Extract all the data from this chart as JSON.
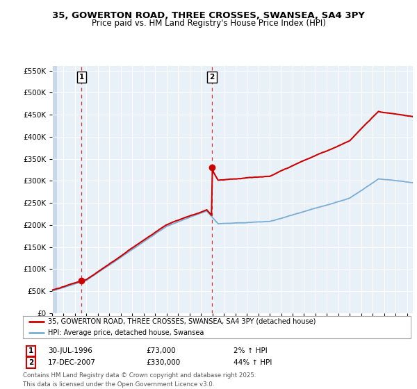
{
  "title": "35, GOWERTON ROAD, THREE CROSSES, SWANSEA, SA4 3PY",
  "subtitle": "Price paid vs. HM Land Registry's House Price Index (HPI)",
  "legend_line1": "35, GOWERTON ROAD, THREE CROSSES, SWANSEA, SA4 3PY (detached house)",
  "legend_line2": "HPI: Average price, detached house, Swansea",
  "annotation1_label": "1",
  "annotation1_date": "30-JUL-1996",
  "annotation1_price": "£73,000",
  "annotation1_hpi": "2% ↑ HPI",
  "annotation2_label": "2",
  "annotation2_date": "17-DEC-2007",
  "annotation2_price": "£330,000",
  "annotation2_hpi": "44% ↑ HPI",
  "footer": "Contains HM Land Registry data © Crown copyright and database right 2025.\nThis data is licensed under the Open Government Licence v3.0.",
  "sale1_year": 1996.57,
  "sale1_price": 73000,
  "sale2_year": 2007.96,
  "sale2_price": 330000,
  "red_color": "#cc0000",
  "blue_color": "#7aadd4",
  "background_color": "#ffffff",
  "plot_bg_color": "#e8f0f8",
  "grid_color": "#ffffff",
  "hatch_color": "#c8d8e8",
  "ylim_max": 560000,
  "ylim_min": 0,
  "xmin": 1994,
  "xmax": 2025.5
}
